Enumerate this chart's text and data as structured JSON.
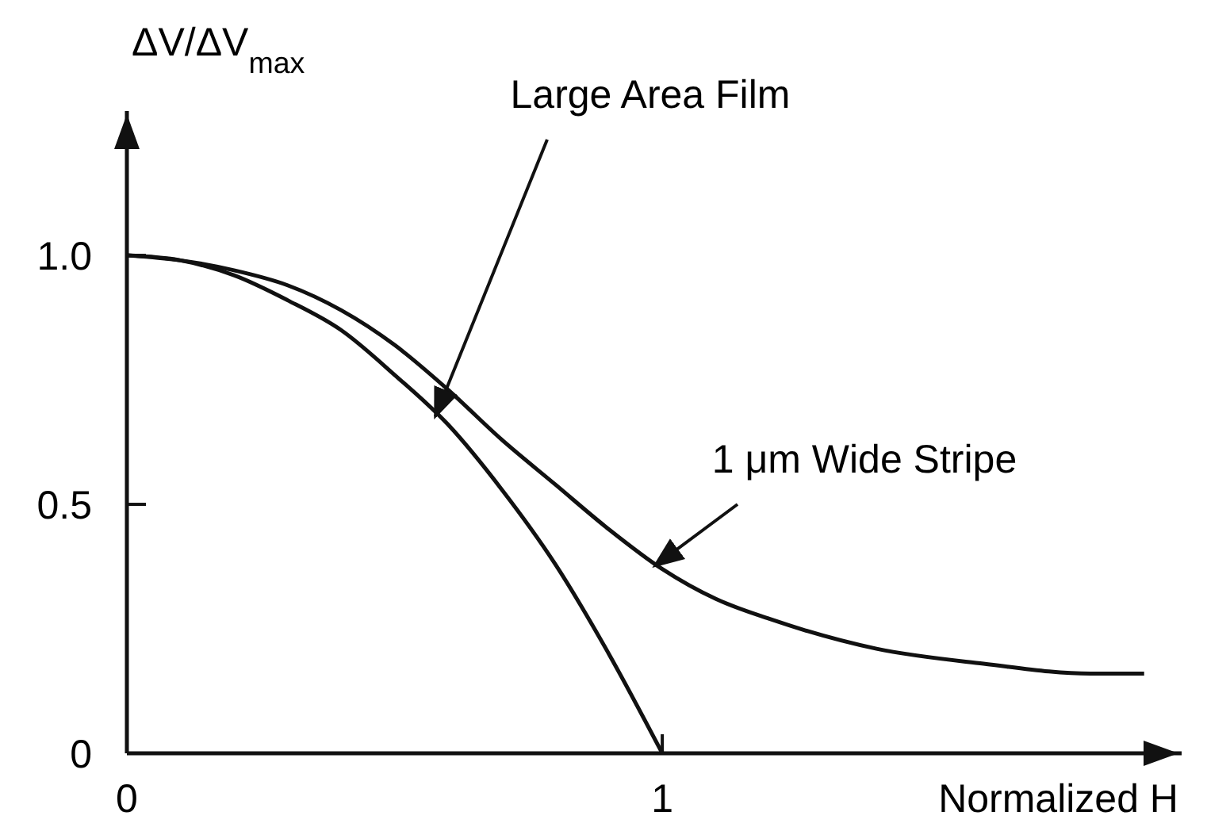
{
  "chart_data": {
    "type": "line",
    "xlabel": "Normalized H",
    "ylabel": "ΔV/ΔV$_{max}$",
    "xlim": [
      0,
      1.97
    ],
    "ylim": [
      0,
      1.29
    ],
    "xticks": [
      0,
      1
    ],
    "yticks": [
      0,
      {
        "value": 0.5,
        "label": "0.5"
      },
      {
        "value": 1,
        "label": "1.0"
      }
    ],
    "series": [
      {
        "color": "#111111",
        "x": [
          0,
          0.1,
          0.2,
          0.3,
          0.4,
          0.5,
          0.6,
          0.7,
          0.8,
          0.9,
          1.0
        ],
        "values": [
          1,
          0.99,
          0.96,
          0.91,
          0.85,
          0.76,
          0.66,
          0.53,
          0.38,
          0.2,
          0
        ]
      },
      {
        "color": "#111111",
        "x": [
          0,
          0.1,
          0.2,
          0.3,
          0.4,
          0.5,
          0.6,
          0.7,
          0.8,
          0.9,
          1.0,
          1.1,
          1.2,
          1.4,
          1.6,
          1.8,
          1.9
        ],
        "values": [
          1,
          0.99,
          0.97,
          0.94,
          0.89,
          0.82,
          0.73,
          0.63,
          0.54,
          0.45,
          0.37,
          0.31,
          0.27,
          0.21,
          0.18,
          0.16,
          0.16
        ]
      }
    ],
    "annotations": [
      {
        "text": "Large Area Film",
        "x": 0.57,
        "y": 0.67
      },
      {
        "text": "1 μm Wide Stripe",
        "x": 0.98,
        "y": 0.37
      }
    ],
    "grid": false,
    "marker": "none",
    "line_style": "solid"
  }
}
